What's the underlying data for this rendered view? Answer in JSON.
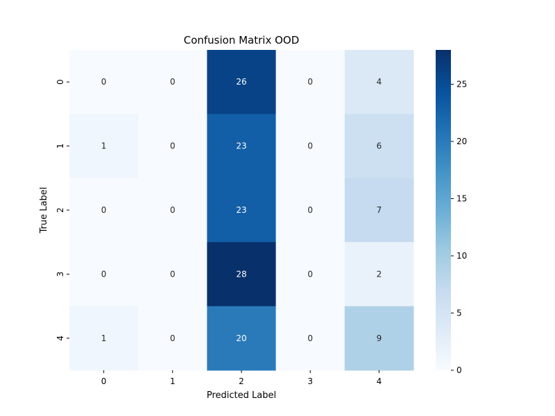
{
  "chart_data": {
    "type": "heatmap",
    "title": "Confusion Matrix OOD",
    "xlabel": "Predicted Label",
    "ylabel": "True Label",
    "x_categories": [
      "0",
      "1",
      "2",
      "3",
      "4"
    ],
    "y_categories": [
      "0",
      "1",
      "2",
      "3",
      "4"
    ],
    "values": [
      [
        0,
        0,
        26,
        0,
        4
      ],
      [
        1,
        0,
        23,
        0,
        6
      ],
      [
        0,
        0,
        23,
        0,
        7
      ],
      [
        0,
        0,
        28,
        0,
        2
      ],
      [
        1,
        0,
        20,
        0,
        9
      ]
    ],
    "colormap": "Blues",
    "vmin": 0,
    "vmax": 28,
    "colorbar_ticks": [
      0,
      5,
      10,
      15,
      20,
      25
    ]
  },
  "colors": {
    "blues": [
      "#f7fbff",
      "#deebf7",
      "#c6dbef",
      "#9ecae1",
      "#6baed6",
      "#4292c6",
      "#2171b5",
      "#08519c",
      "#08306b"
    ]
  }
}
